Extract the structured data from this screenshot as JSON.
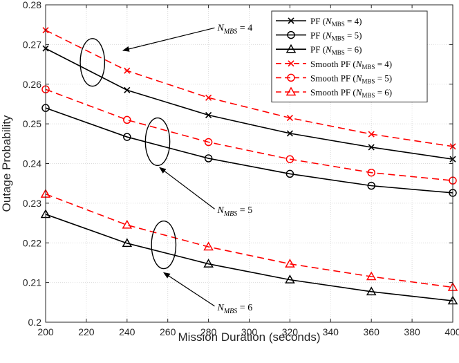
{
  "chart_data": {
    "type": "line",
    "title": "",
    "xlabel": "Mission Duration (seconds)",
    "ylabel": "Outage Probability",
    "xlim": [
      200,
      400
    ],
    "ylim": [
      0.2,
      0.28
    ],
    "xticks": [
      200,
      220,
      240,
      260,
      280,
      300,
      320,
      340,
      360,
      380,
      400
    ],
    "xtick_labels": [
      "200",
      "220",
      "240",
      "260",
      "280",
      "300",
      "320",
      "340",
      "360",
      "380",
      "400"
    ],
    "yticks": [
      0.2,
      0.21,
      0.22,
      0.23,
      0.24,
      0.25,
      0.26,
      0.27,
      0.28
    ],
    "ytick_labels": [
      "0.2",
      "0.21",
      "0.22",
      "0.23",
      "0.24",
      "0.25",
      "0.26",
      "0.27",
      "0.28"
    ],
    "grid": true,
    "legend_position": "top-right",
    "x": [
      200,
      240,
      280,
      320,
      360,
      400
    ],
    "series": [
      {
        "name": "PF (NMBS = 4)",
        "legend_prefix": "PF (",
        "legend_var": "N",
        "legend_sub": "MBS",
        "legend_suffix": " = 4)",
        "color": "#000000",
        "dash": "solid",
        "marker": "x",
        "values": [
          0.269,
          0.2585,
          0.2522,
          0.2476,
          0.2441,
          0.2411
        ]
      },
      {
        "name": "PF (NMBS = 5)",
        "legend_prefix": "PF (",
        "legend_var": "N",
        "legend_sub": "MBS",
        "legend_suffix": " = 5)",
        "color": "#000000",
        "dash": "solid",
        "marker": "circle",
        "values": [
          0.254,
          0.2467,
          0.2413,
          0.2374,
          0.2344,
          0.2326
        ]
      },
      {
        "name": "PF (NMBS = 6)",
        "legend_prefix": "PF (",
        "legend_var": "N",
        "legend_sub": "MBS",
        "legend_suffix": " = 6)",
        "color": "#000000",
        "dash": "solid",
        "marker": "triangle",
        "values": [
          0.2272,
          0.2199,
          0.2147,
          0.2107,
          0.2077,
          0.2054
        ]
      },
      {
        "name": "Smooth PF (NMBS = 4)",
        "legend_prefix": "Smooth PF (",
        "legend_var": "N",
        "legend_sub": "MBS",
        "legend_suffix": " = 4)",
        "color": "#ff0000",
        "dash": "dashed",
        "marker": "x",
        "values": [
          0.2736,
          0.2634,
          0.2566,
          0.2515,
          0.2474,
          0.2443
        ]
      },
      {
        "name": "Smooth PF (NMBS = 5)",
        "legend_prefix": "Smooth PF (",
        "legend_var": "N",
        "legend_sub": "MBS",
        "legend_suffix": " = 5)",
        "color": "#ff0000",
        "dash": "dashed",
        "marker": "circle",
        "values": [
          0.2587,
          0.251,
          0.2454,
          0.2411,
          0.2377,
          0.2357
        ]
      },
      {
        "name": "Smooth PF (NMBS = 6)",
        "legend_prefix": "Smooth PF (",
        "legend_var": "N",
        "legend_sub": "MBS",
        "legend_suffix": " = 6)",
        "color": "#ff0000",
        "dash": "dashed",
        "marker": "triangle",
        "values": [
          0.2323,
          0.2245,
          0.219,
          0.2147,
          0.2115,
          0.2088
        ]
      }
    ],
    "annotations": [
      {
        "var": "N",
        "sub": "MBS",
        "rest": " = 4",
        "ellipse_center": [
          223,
          0.2655
        ],
        "text_anchor_data": [
          300,
          0.2735
        ],
        "arrow_to_data": [
          238,
          0.2685
        ]
      },
      {
        "var": "N",
        "sub": "MBS",
        "rest": " = 5",
        "ellipse_center": [
          255,
          0.2455
        ],
        "text_anchor_data": [
          300,
          0.2275
        ],
        "arrow_to_data": [
          256,
          0.239
        ]
      },
      {
        "var": "N",
        "sub": "MBS",
        "rest": " = 6",
        "ellipse_center": [
          258,
          0.2195
        ],
        "text_anchor_data": [
          300,
          0.203
        ],
        "arrow_to_data": [
          258,
          0.2125
        ]
      }
    ],
    "ellipse_radius_data": [
      6,
      0.006
    ]
  }
}
